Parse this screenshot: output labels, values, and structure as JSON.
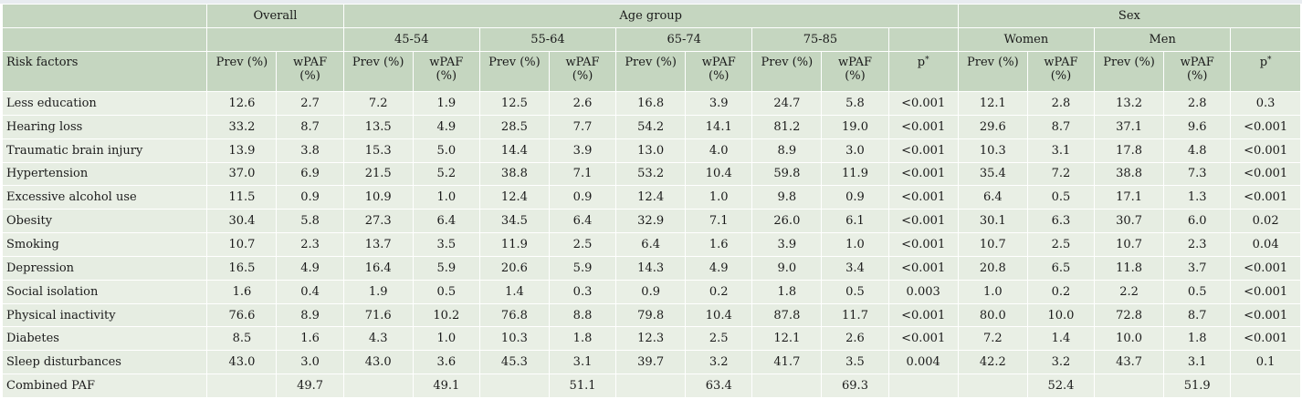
{
  "headers": {
    "overall": "Overall",
    "age_group": "Age group",
    "sex": "Sex",
    "age_45_54": "45-54",
    "age_55_64": "55-64",
    "age_65_74": "65-74",
    "age_75_85": "75-85",
    "women": "Women",
    "men": "Men",
    "risk_factors": "Risk factors",
    "prev": "Prev (%)",
    "wpaf_line1": "wPAF",
    "wpaf_line2": "(%)",
    "p": "p",
    "p_mark": "*"
  },
  "rows": [
    {
      "factor": "Less education",
      "cells": [
        "12.6",
        "2.7",
        "7.2",
        "1.9",
        "12.5",
        "2.6",
        "16.8",
        "3.9",
        "24.7",
        "5.8",
        "<0.001",
        "12.1",
        "2.8",
        "13.2",
        "2.8",
        "0.3"
      ]
    },
    {
      "factor": "Hearing loss",
      "cells": [
        "33.2",
        "8.7",
        "13.5",
        "4.9",
        "28.5",
        "7.7",
        "54.2",
        "14.1",
        "81.2",
        "19.0",
        "<0.001",
        "29.6",
        "8.7",
        "37.1",
        "9.6",
        "<0.001"
      ]
    },
    {
      "factor": "Traumatic brain injury",
      "cells": [
        "13.9",
        "3.8",
        "15.3",
        "5.0",
        "14.4",
        "3.9",
        "13.0",
        "4.0",
        "8.9",
        "3.0",
        "<0.001",
        "10.3",
        "3.1",
        "17.8",
        "4.8",
        "<0.001"
      ]
    },
    {
      "factor": "Hypertension",
      "cells": [
        "37.0",
        "6.9",
        "21.5",
        "5.2",
        "38.8",
        "7.1",
        "53.2",
        "10.4",
        "59.8",
        "11.9",
        "<0.001",
        "35.4",
        "7.2",
        "38.8",
        "7.3",
        "<0.001"
      ]
    },
    {
      "factor": "Excessive alcohol use",
      "cells": [
        "11.5",
        "0.9",
        "10.9",
        "1.0",
        "12.4",
        "0.9",
        "12.4",
        "1.0",
        "9.8",
        "0.9",
        "<0.001",
        "6.4",
        "0.5",
        "17.1",
        "1.3",
        "<0.001"
      ]
    },
    {
      "factor": "Obesity",
      "cells": [
        "30.4",
        "5.8",
        "27.3",
        "6.4",
        "34.5",
        "6.4",
        "32.9",
        "7.1",
        "26.0",
        "6.1",
        "<0.001",
        "30.1",
        "6.3",
        "30.7",
        "6.0",
        "0.02"
      ]
    },
    {
      "factor": "Smoking",
      "cells": [
        "10.7",
        "2.3",
        "13.7",
        "3.5",
        "11.9",
        "2.5",
        "6.4",
        "1.6",
        "3.9",
        "1.0",
        "<0.001",
        "10.7",
        "2.5",
        "10.7",
        "2.3",
        "0.04"
      ]
    },
    {
      "factor": "Depression",
      "cells": [
        "16.5",
        "4.9",
        "16.4",
        "5.9",
        "20.6",
        "5.9",
        "14.3",
        "4.9",
        "9.0",
        "3.4",
        "<0.001",
        "20.8",
        "6.5",
        "11.8",
        "3.7",
        "<0.001"
      ]
    },
    {
      "factor": "Social isolation",
      "cells": [
        "1.6",
        "0.4",
        "1.9",
        "0.5",
        "1.4",
        "0.3",
        "0.9",
        "0.2",
        "1.8",
        "0.5",
        "0.003",
        "1.0",
        "0.2",
        "2.2",
        "0.5",
        "<0.001"
      ]
    },
    {
      "factor": "Physical inactivity",
      "cells": [
        "76.6",
        "8.9",
        "71.6",
        "10.2",
        "76.8",
        "8.8",
        "79.8",
        "10.4",
        "87.8",
        "11.7",
        "<0.001",
        "80.0",
        "10.0",
        "72.8",
        "8.7",
        "<0.001"
      ]
    },
    {
      "factor": "Diabetes",
      "cells": [
        "8.5",
        "1.6",
        "4.3",
        "1.0",
        "10.3",
        "1.8",
        "12.3",
        "2.5",
        "12.1",
        "2.6",
        "<0.001",
        "7.2",
        "1.4",
        "10.0",
        "1.8",
        "<0.001"
      ]
    },
    {
      "factor": "Sleep disturbances",
      "cells": [
        "43.0",
        "3.0",
        "43.0",
        "3.6",
        "45.3",
        "3.1",
        "39.7",
        "3.2",
        "41.7",
        "3.5",
        "0.004",
        "42.2",
        "3.2",
        "43.7",
        "3.1",
        "0.1"
      ]
    },
    {
      "factor": "Combined PAF",
      "cells": [
        "",
        "49.7",
        "",
        "49.1",
        "",
        "51.1",
        "",
        "63.4",
        "",
        "69.3",
        "",
        "",
        "52.4",
        "",
        "51.9",
        ""
      ]
    }
  ]
}
